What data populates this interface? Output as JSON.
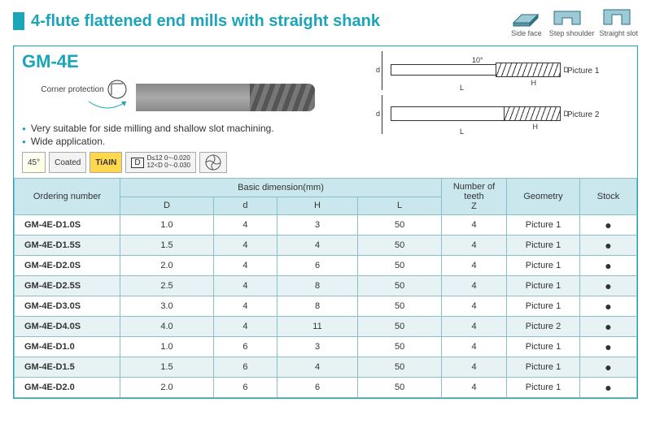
{
  "header": {
    "title": "4-flute flattened end mills with straight shank",
    "icons": [
      {
        "label": "Side face"
      },
      {
        "label": "Step shoulder"
      },
      {
        "label": "Straight slot"
      }
    ]
  },
  "model": {
    "name": "GM-4E",
    "corner_protection": "Corner protection",
    "bullets": [
      "Very suitable for side milling and shallow slot machining.",
      "Wide application."
    ],
    "badges": {
      "angle": "45°",
      "coated": "Coated",
      "tiain": "TiAIN",
      "tol1": "D≤12  0~-0.020",
      "tol2": "12<D   0~-0.030",
      "tol_prefix": "D"
    },
    "drawings": {
      "pic1": "Picture 1",
      "pic2": "Picture 2",
      "dims": {
        "d": "d",
        "D": "D",
        "H": "H",
        "L": "L",
        "angle": "10°"
      }
    }
  },
  "table": {
    "headers": {
      "ordering": "Ordering number",
      "basic_dim": "Basic dimension(mm)",
      "D": "D",
      "d": "d",
      "H": "H",
      "L": "L",
      "teeth": "Number of teeth\nZ",
      "geometry": "Geometry",
      "stock": "Stock"
    },
    "rows": [
      {
        "ord": "GM-4E-D1.0S",
        "D": "1.0",
        "d": "4",
        "H": "3",
        "L": "50",
        "Z": "4",
        "geo": "Picture 1",
        "stock": "●"
      },
      {
        "ord": "GM-4E-D1.5S",
        "D": "1.5",
        "d": "4",
        "H": "4",
        "L": "50",
        "Z": "4",
        "geo": "Picture 1",
        "stock": "●"
      },
      {
        "ord": "GM-4E-D2.0S",
        "D": "2.0",
        "d": "4",
        "H": "6",
        "L": "50",
        "Z": "4",
        "geo": "Picture 1",
        "stock": "●"
      },
      {
        "ord": "GM-4E-D2.5S",
        "D": "2.5",
        "d": "4",
        "H": "8",
        "L": "50",
        "Z": "4",
        "geo": "Picture 1",
        "stock": "●"
      },
      {
        "ord": "GM-4E-D3.0S",
        "D": "3.0",
        "d": "4",
        "H": "8",
        "L": "50",
        "Z": "4",
        "geo": "Picture 1",
        "stock": "●"
      },
      {
        "ord": "GM-4E-D4.0S",
        "D": "4.0",
        "d": "4",
        "H": "11",
        "L": "50",
        "Z": "4",
        "geo": "Picture 2",
        "stock": "●"
      },
      {
        "ord": "GM-4E-D1.0",
        "D": "1.0",
        "d": "6",
        "H": "3",
        "L": "50",
        "Z": "4",
        "geo": "Picture 1",
        "stock": "●"
      },
      {
        "ord": "GM-4E-D1.5",
        "D": "1.5",
        "d": "6",
        "H": "4",
        "L": "50",
        "Z": "4",
        "geo": "Picture 1",
        "stock": "●"
      },
      {
        "ord": "GM-4E-D2.0",
        "D": "2.0",
        "d": "6",
        "H": "6",
        "L": "50",
        "Z": "4",
        "geo": "Picture 1",
        "stock": "●"
      }
    ]
  }
}
